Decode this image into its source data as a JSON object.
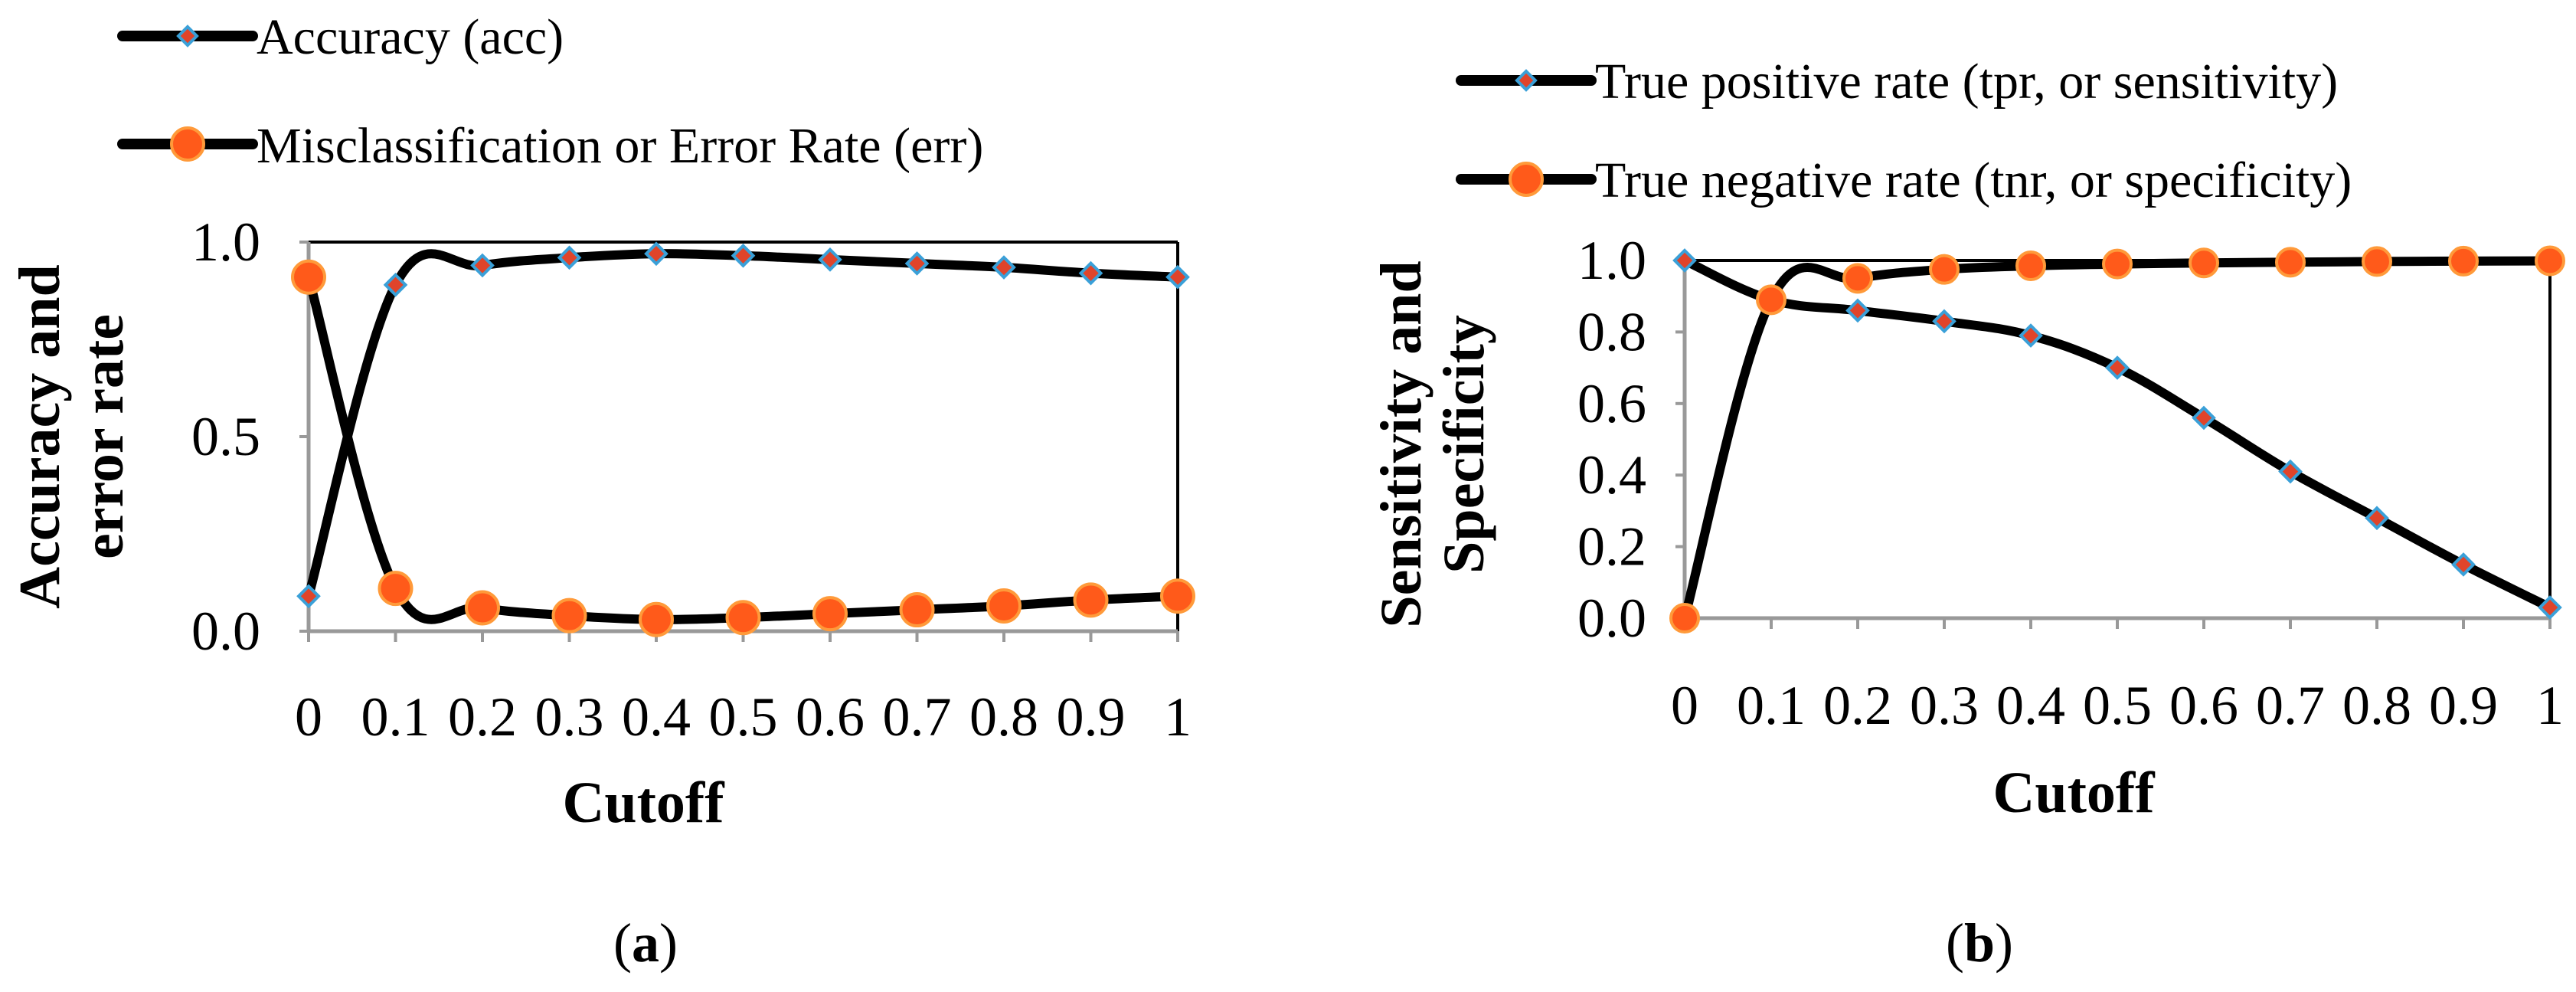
{
  "colors": {
    "line": "#000000",
    "diamond_fill": "#e0442a",
    "diamond_edge": "#3aa0d8",
    "circle_fill": "#ff5a1a",
    "circle_edge": "#ff9a3a",
    "axis_gray": "#999999"
  },
  "chart_data": [
    {
      "type": "line",
      "panel": "(a)",
      "panel_parts": [
        "(",
        "a",
        ")"
      ],
      "xlabel": "Cutoff",
      "ylabel_lines": [
        "Accuracy and",
        "error rate"
      ],
      "ylim": [
        0,
        1
      ],
      "x": [
        0,
        0.1,
        0.2,
        0.3,
        0.4,
        0.5,
        0.6,
        0.7,
        0.8,
        0.9,
        1
      ],
      "x_tick_labels": [
        "0",
        "0.1",
        "0.2",
        "0.3",
        "0.4",
        "0.5",
        "0.6",
        "0.7",
        "0.8",
        "0.9",
        "1"
      ],
      "y_ticks": [
        0,
        0.5,
        1
      ],
      "y_tick_labels": [
        "0.0",
        "0.5",
        "1.0"
      ],
      "grid": false,
      "legend_position": "top",
      "series": [
        {
          "name": "Accuracy (acc)",
          "marker": "diamond",
          "values": [
            0.09,
            0.89,
            0.94,
            0.96,
            0.97,
            0.965,
            0.955,
            0.945,
            0.935,
            0.92,
            0.91
          ]
        },
        {
          "name": "Misclassification or Error Rate (err)",
          "marker": "circle",
          "values": [
            0.91,
            0.11,
            0.06,
            0.04,
            0.03,
            0.035,
            0.045,
            0.055,
            0.065,
            0.08,
            0.09
          ]
        }
      ]
    },
    {
      "type": "line",
      "panel": "(b)",
      "panel_parts": [
        "(",
        "b",
        ")"
      ],
      "xlabel": "Cutoff",
      "ylabel_lines": [
        "Sensitivity and",
        "Specificity"
      ],
      "ylim": [
        0,
        1
      ],
      "x": [
        0,
        0.1,
        0.2,
        0.3,
        0.4,
        0.5,
        0.6,
        0.7,
        0.8,
        0.9,
        1
      ],
      "x_tick_labels": [
        "0",
        "0.1",
        "0.2",
        "0.3",
        "0.4",
        "0.5",
        "0.6",
        "0.7",
        "0.8",
        "0.9",
        "1"
      ],
      "y_ticks": [
        0,
        0.2,
        0.4,
        0.6,
        0.8,
        1
      ],
      "y_tick_labels": [
        "0.0",
        "0.2",
        "0.4",
        "0.6",
        "0.8",
        "1.0"
      ],
      "grid": false,
      "legend_position": "top",
      "series": [
        {
          "name": "True positive rate (tpr, or sensitivity)",
          "marker": "diamond",
          "values": [
            1.0,
            0.89,
            0.86,
            0.83,
            0.79,
            0.7,
            0.56,
            0.41,
            0.28,
            0.15,
            0.03
          ]
        },
        {
          "name": "True negative rate (tnr, or specificity)",
          "marker": "circle",
          "values": [
            0.0,
            0.89,
            0.95,
            0.975,
            0.985,
            0.99,
            0.993,
            0.995,
            0.997,
            0.998,
            0.999
          ]
        }
      ]
    }
  ]
}
